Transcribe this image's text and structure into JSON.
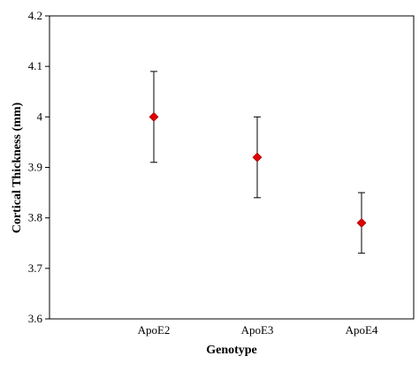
{
  "chart_data": {
    "type": "scatter",
    "xlabel": "Genotype",
    "ylabel": "Cortical Thickness (mm)",
    "categories": [
      "ApoE2",
      "ApoE3",
      "ApoE4"
    ],
    "series": [
      {
        "values": [
          4.0,
          3.92,
          3.79
        ],
        "error_lower": [
          3.91,
          3.84,
          3.73
        ],
        "error_upper": [
          4.09,
          4.0,
          3.85
        ],
        "marker": "diamond",
        "color": "#e00000"
      }
    ],
    "ylim": [
      3.6,
      4.2
    ],
    "y_ticks": [
      3.6,
      3.7,
      3.8,
      3.9,
      4.0,
      4.1,
      4.2
    ],
    "y_tick_labels": [
      "3.6",
      "3.7",
      "3.8",
      "3.9",
      "4",
      "4.1",
      "4.2"
    ],
    "grid": false,
    "legend": "none"
  }
}
